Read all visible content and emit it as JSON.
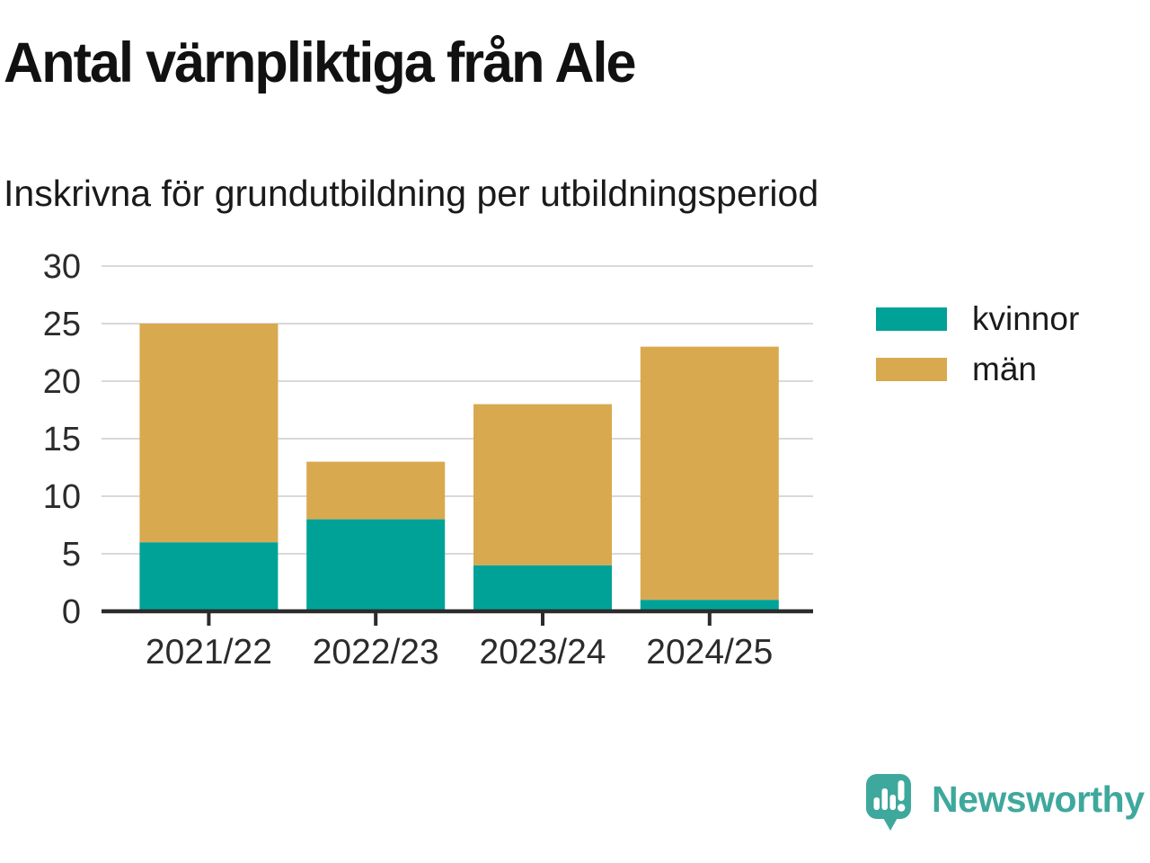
{
  "header": {
    "title": "Antal värnpliktiga från Ale",
    "subtitle": "Inskrivna för grundutbildning per utbildningsperiod"
  },
  "chart_data": {
    "type": "bar",
    "stacked": true,
    "title": "Antal värnpliktiga från Ale",
    "subtitle": "Inskrivna för grundutbildning per utbildningsperiod",
    "categories": [
      "2021/22",
      "2022/23",
      "2023/24",
      "2024/25"
    ],
    "series": [
      {
        "name": "kvinnor",
        "color": "#00a298",
        "values": [
          6,
          8,
          4,
          1
        ]
      },
      {
        "name": "män",
        "color": "#d9a94f",
        "values": [
          19,
          5,
          14,
          22
        ]
      }
    ],
    "xlabel": "",
    "ylabel": "",
    "ylim": [
      0,
      30
    ],
    "yticks": [
      0,
      5,
      10,
      15,
      20,
      25,
      30
    ],
    "grid": true,
    "gridline_color": "#d9d9d9",
    "axis_color": "#2b2b2b",
    "legend_position": "right"
  },
  "branding": {
    "logo_text": "Newsworthy",
    "logo_color": "#3fa89c",
    "logo_icon": "speech-bubble-bar-chart-exclamation"
  }
}
